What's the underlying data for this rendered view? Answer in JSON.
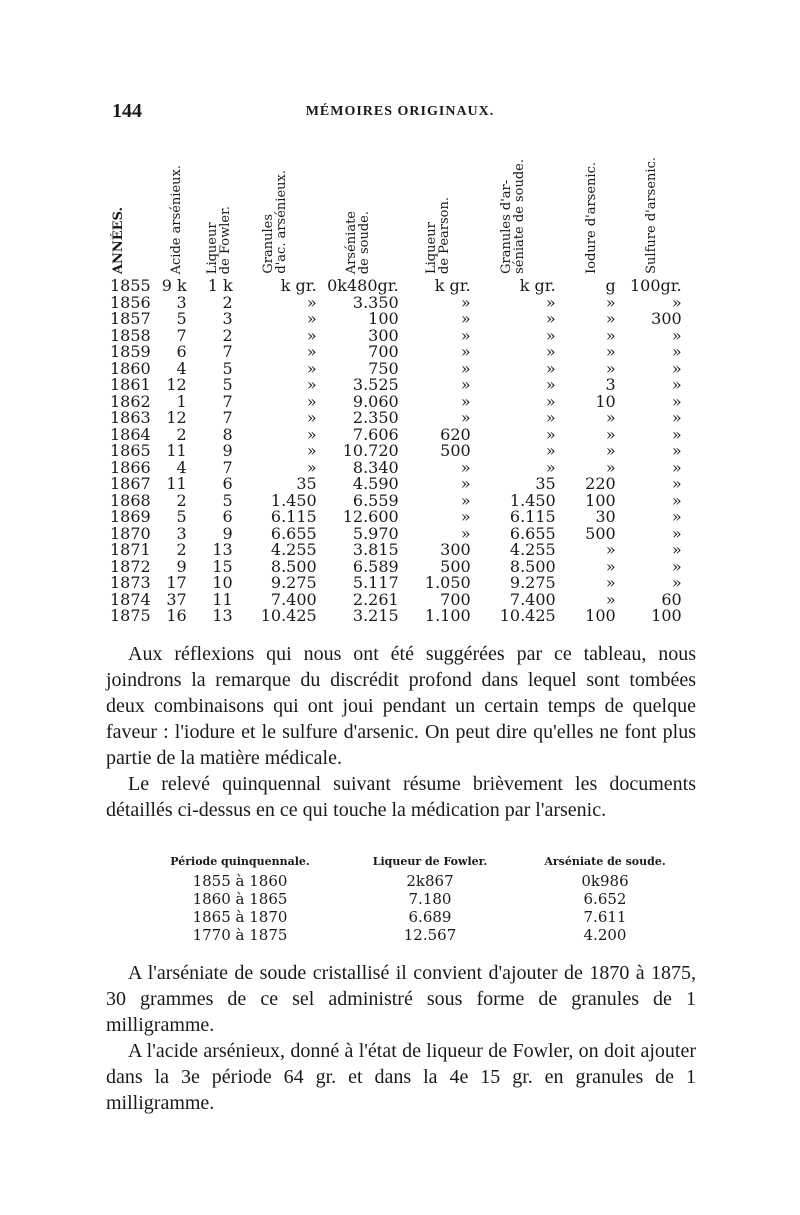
{
  "page_number": "144",
  "running_title": "MÉMOIRES ORIGINAUX.",
  "table": {
    "headers": [
      "ANNÉES.",
      "Acide arsénieux.",
      "Liqueur\nde Fowler.",
      "Granules\nd'ac. arsénieux.",
      "Arséniate\nde soude.",
      "Liqueur\nde Pearson.",
      "Granules d'ar-\nséniate de soude.",
      "Iodure d'arsenic.",
      "Sulfure d'arsenic."
    ],
    "rows": [
      [
        "1855",
        "9 k",
        "1 k",
        "k gr.",
        "0k480gr.",
        "k gr.",
        "k gr.",
        "g",
        "100gr."
      ],
      [
        "1856",
        "3",
        "2",
        "»",
        "3.350",
        "»",
        "»",
        "»",
        "»"
      ],
      [
        "1857",
        "5",
        "3",
        "»",
        "100",
        "»",
        "»",
        "»",
        "300"
      ],
      [
        "1858",
        "7",
        "2",
        "»",
        "300",
        "»",
        "»",
        "»",
        "»"
      ],
      [
        "1859",
        "6",
        "7",
        "»",
        "700",
        "»",
        "»",
        "»",
        "»"
      ],
      [
        "1860",
        "4",
        "5",
        "»",
        "750",
        "»",
        "»",
        "»",
        "»"
      ],
      [
        "1861",
        "12",
        "5",
        "»",
        "3.525",
        "»",
        "»",
        "3",
        "»"
      ],
      [
        "1862",
        "1",
        "7",
        "»",
        "9.060",
        "»",
        "»",
        "10",
        "»"
      ],
      [
        "1863",
        "12",
        "7",
        "»",
        "2.350",
        "»",
        "»",
        "»",
        "»"
      ],
      [
        "1864",
        "2",
        "8",
        "»",
        "7.606",
        "620",
        "»",
        "»",
        "»"
      ],
      [
        "1865",
        "11",
        "9",
        "»",
        "10.720",
        "500",
        "»",
        "»",
        "»"
      ],
      [
        "1866",
        "4",
        "7",
        "»",
        "8.340",
        "»",
        "»",
        "»",
        "»"
      ],
      [
        "1867",
        "11",
        "6",
        "35",
        "4.590",
        "»",
        "35",
        "220",
        "»"
      ],
      [
        "1868",
        "2",
        "5",
        "1.450",
        "6.559",
        "»",
        "1.450",
        "100",
        "»"
      ],
      [
        "1869",
        "5",
        "6",
        "6.115",
        "12.600",
        "»",
        "6.115",
        "30",
        "»"
      ],
      [
        "1870",
        "3",
        "9",
        "6.655",
        "5.970",
        "»",
        "6.655",
        "500",
        "»"
      ],
      [
        "1871",
        "2",
        "13",
        "4.255",
        "3.815",
        "300",
        "4.255",
        "»",
        "»"
      ],
      [
        "1872",
        "9",
        "15",
        "8.500",
        "6.589",
        "500",
        "8.500",
        "»",
        "»"
      ],
      [
        "1873",
        "17",
        "10",
        "9.275",
        "5.117",
        "1.050",
        "9.275",
        "»",
        "»"
      ],
      [
        "1874",
        "37",
        "11",
        "7.400",
        "2.261",
        "700",
        "7.400",
        "»",
        "60"
      ],
      [
        "1875",
        "16",
        "13",
        "10.425",
        "3.215",
        "1.100",
        "10.425",
        "100",
        "100"
      ]
    ]
  },
  "paragraphs": [
    "Aux réflexions qui nous ont été suggérées par ce tableau, nous joindrons la remarque du discrédit profond dans lequel sont tombées deux combinaisons qui ont joui pendant un certain temps de quelque faveur : l'iodure et le sulfure d'arsenic. On peut dire qu'elles ne font plus partie de la matière médicale.",
    "Le relevé quinquennal suivant résume brièvement les documents détaillés ci-dessus en ce qui touche la médication par l'arsenic."
  ],
  "summary_table": {
    "headers": [
      "Période quinquennale.",
      "Liqueur de Fowler.",
      "Arséniate de soude."
    ],
    "rows": [
      [
        "1855 à 1860",
        "2k867",
        "0k986"
      ],
      [
        "1860 à 1865",
        "7.180",
        "6.652"
      ],
      [
        "1865 à 1870",
        "6.689",
        "7.611"
      ],
      [
        "1770 à 1875",
        "12.567",
        "4.200"
      ]
    ]
  },
  "paragraphs_after": [
    "A l'arséniate de soude cristallisé il convient d'ajouter de 1870 à 1875, 30 grammes de ce sel administré sous forme de granules de 1 milligramme.",
    "A l'acide arsénieux, donné à l'état de liqueur de Fowler, on doit ajouter dans la 3e période 64 gr. et dans la 4e 15 gr. en granules de 1 milligramme."
  ]
}
